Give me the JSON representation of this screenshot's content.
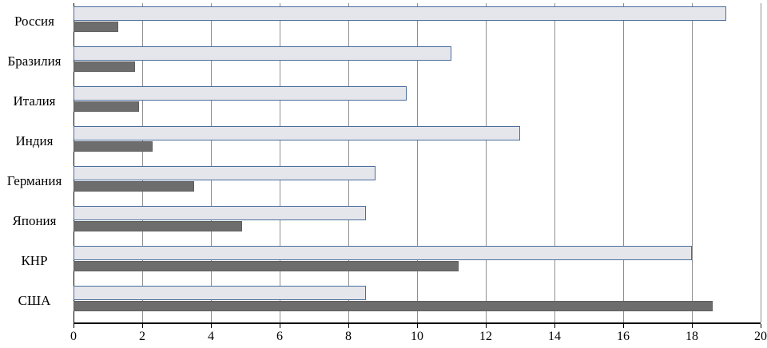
{
  "chart_data": {
    "type": "bar",
    "orientation": "horizontal",
    "title": "",
    "xlabel": "",
    "ylabel": "",
    "grid": true,
    "legend_position": "none",
    "xlim": [
      0,
      20
    ],
    "xticks": [
      0,
      2,
      4,
      6,
      8,
      10,
      12,
      14,
      16,
      18,
      20
    ],
    "categories": [
      "Россия",
      "Бразилия",
      "Италия",
      "Индия",
      "Германия",
      "Япония",
      "КНР",
      "США"
    ],
    "series": [
      {
        "name": "light-series",
        "fill": "#e5e6eb",
        "border": "#4a6d9c",
        "values": [
          19,
          11,
          9.7,
          13,
          8.8,
          8.5,
          18,
          8.5
        ]
      },
      {
        "name": "dark-series",
        "fill": "#6d6d6d",
        "border": "#5e5e5e",
        "values": [
          1.3,
          1.8,
          1.9,
          2.3,
          3.5,
          4.9,
          11.2,
          18.6
        ]
      }
    ]
  }
}
